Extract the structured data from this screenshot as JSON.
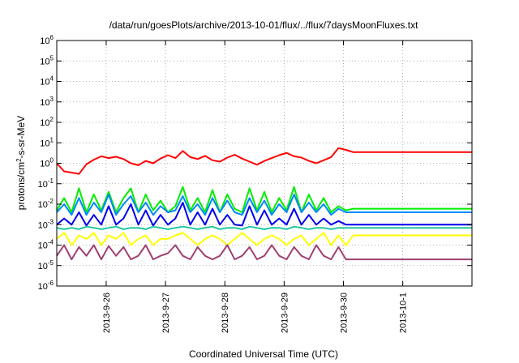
{
  "chart_data": {
    "type": "line",
    "title": "/data/run/goesPlots/archive/2013-10-01/flux/../flux/7daysMoonFluxes.txt",
    "xlabel": "Coordinated Universal Time (UTC)",
    "ylabel_parts": [
      "protons/cm",
      "2",
      "-s-sr-MeV"
    ],
    "y_scale": "log",
    "ylim_exponents": [
      -6,
      6
    ],
    "y_tick_base": "10",
    "y_tick_exponents": [
      "-6",
      "-5",
      "-4",
      "-3",
      "-2",
      "-1",
      "0",
      "1",
      "2",
      "3",
      "4",
      "5",
      "6"
    ],
    "xlim": [
      "2013-09-25 04:00",
      "2013-10-02 04:00"
    ],
    "x_ticks": [
      "2013-9-26",
      "2013-9-27",
      "2013-9-28",
      "2013-9-29",
      "2013-9-30",
      "2013-10-1"
    ],
    "grid": true,
    "series": [
      {
        "color": "#ff0000",
        "flat_value": 3.5,
        "x": [
          "2013-09-25 04:00",
          "2013-09-25 07:00",
          "2013-09-25 10:00",
          "2013-09-25 13:00",
          "2013-09-25 16:00",
          "2013-09-25 19:00",
          "2013-09-25 22:00",
          "2013-09-26 01:00",
          "2013-09-26 04:00",
          "2013-09-26 07:00",
          "2013-09-26 10:00",
          "2013-09-26 13:00",
          "2013-09-26 16:00",
          "2013-09-26 19:00",
          "2013-09-26 22:00",
          "2013-09-27 01:00",
          "2013-09-27 04:00",
          "2013-09-27 07:00",
          "2013-09-27 10:00",
          "2013-09-27 13:00",
          "2013-09-27 16:00",
          "2013-09-27 19:00",
          "2013-09-27 22:00",
          "2013-09-28 01:00",
          "2013-09-28 04:00",
          "2013-09-28 07:00",
          "2013-09-28 10:00",
          "2013-09-28 13:00",
          "2013-09-28 16:00",
          "2013-09-28 19:00",
          "2013-09-28 22:00",
          "2013-09-29 01:00",
          "2013-09-29 04:00",
          "2013-09-29 07:00",
          "2013-09-29 10:00",
          "2013-09-29 13:00",
          "2013-09-29 16:00",
          "2013-09-29 19:00",
          "2013-09-29 22:00",
          "2013-09-30 01:00",
          "2013-09-30 04:00",
          "2013-10-02 04:00"
        ],
        "values": [
          1.0,
          0.4,
          0.35,
          0.3,
          0.9,
          1.5,
          2.2,
          1.8,
          2.1,
          1.6,
          1.0,
          0.8,
          1.3,
          1.0,
          1.7,
          2.5,
          1.8,
          4.0,
          2.0,
          1.6,
          2.3,
          1.4,
          1.2,
          1.9,
          2.6,
          1.7,
          1.2,
          0.85,
          1.3,
          1.8,
          2.5,
          3.2,
          2.2,
          1.9,
          1.3,
          1.0,
          1.4,
          2.0,
          5.5,
          4.5,
          3.5,
          3.5
        ]
      },
      {
        "color": "#00ee00",
        "flat_value": 0.006,
        "x": [
          "2013-09-25 04:00",
          "2013-09-25 07:00",
          "2013-09-25 10:00",
          "2013-09-25 13:00",
          "2013-09-25 16:00",
          "2013-09-25 19:00",
          "2013-09-25 22:00",
          "2013-09-26 01:00",
          "2013-09-26 04:00",
          "2013-09-26 07:00",
          "2013-09-26 10:00",
          "2013-09-26 13:00",
          "2013-09-26 16:00",
          "2013-09-26 19:00",
          "2013-09-26 22:00",
          "2013-09-27 01:00",
          "2013-09-27 04:00",
          "2013-09-27 07:00",
          "2013-09-27 10:00",
          "2013-09-27 13:00",
          "2013-09-27 16:00",
          "2013-09-27 19:00",
          "2013-09-27 22:00",
          "2013-09-28 01:00",
          "2013-09-28 04:00",
          "2013-09-28 07:00",
          "2013-09-28 10:00",
          "2013-09-28 13:00",
          "2013-09-28 16:00",
          "2013-09-28 19:00",
          "2013-09-28 22:00",
          "2013-09-29 01:00",
          "2013-09-29 04:00",
          "2013-09-29 07:00",
          "2013-09-29 10:00",
          "2013-09-29 13:00",
          "2013-09-29 16:00",
          "2013-09-29 19:00",
          "2013-09-29 22:00",
          "2013-09-30 01:00",
          "2013-09-30 04:00",
          "2013-10-02 04:00"
        ],
        "values": [
          0.005,
          0.02,
          0.004,
          0.06,
          0.004,
          0.03,
          0.005,
          0.04,
          0.004,
          0.02,
          0.06,
          0.004,
          0.03,
          0.005,
          0.015,
          0.004,
          0.008,
          0.07,
          0.005,
          0.02,
          0.004,
          0.05,
          0.004,
          0.03,
          0.006,
          0.004,
          0.06,
          0.005,
          0.04,
          0.004,
          0.02,
          0.005,
          0.07,
          0.004,
          0.03,
          0.005,
          0.02,
          0.004,
          0.008,
          0.005,
          0.006,
          0.006
        ]
      },
      {
        "color": "#0088ff",
        "flat_value": 0.004,
        "x": [
          "2013-09-25 04:00",
          "2013-09-25 07:00",
          "2013-09-25 10:00",
          "2013-09-25 13:00",
          "2013-09-25 16:00",
          "2013-09-25 19:00",
          "2013-09-25 22:00",
          "2013-09-26 01:00",
          "2013-09-26 04:00",
          "2013-09-26 07:00",
          "2013-09-26 10:00",
          "2013-09-26 13:00",
          "2013-09-26 16:00",
          "2013-09-26 19:00",
          "2013-09-26 22:00",
          "2013-09-27 01:00",
          "2013-09-27 04:00",
          "2013-09-27 07:00",
          "2013-09-27 10:00",
          "2013-09-27 13:00",
          "2013-09-27 16:00",
          "2013-09-27 19:00",
          "2013-09-27 22:00",
          "2013-09-28 01:00",
          "2013-09-28 04:00",
          "2013-09-28 07:00",
          "2013-09-28 10:00",
          "2013-09-28 13:00",
          "2013-09-28 16:00",
          "2013-09-28 19:00",
          "2013-09-28 22:00",
          "2013-09-29 01:00",
          "2013-09-29 04:00",
          "2013-09-29 07:00",
          "2013-09-29 10:00",
          "2013-09-29 13:00",
          "2013-09-29 16:00",
          "2013-09-29 19:00",
          "2013-09-29 22:00",
          "2013-09-30 01:00",
          "2013-09-30 04:00",
          "2013-10-02 04:00"
        ],
        "values": [
          0.004,
          0.01,
          0.003,
          0.02,
          0.003,
          0.012,
          0.004,
          0.03,
          0.003,
          0.01,
          0.025,
          0.004,
          0.012,
          0.003,
          0.008,
          0.004,
          0.005,
          0.025,
          0.004,
          0.01,
          0.003,
          0.02,
          0.004,
          0.015,
          0.004,
          0.003,
          0.02,
          0.004,
          0.015,
          0.003,
          0.01,
          0.004,
          0.03,
          0.004,
          0.012,
          0.004,
          0.01,
          0.003,
          0.006,
          0.004,
          0.004,
          0.004
        ]
      },
      {
        "color": "#0000ee",
        "flat_value": 0.001,
        "x": [
          "2013-09-25 04:00",
          "2013-09-25 07:00",
          "2013-09-25 10:00",
          "2013-09-25 13:00",
          "2013-09-25 16:00",
          "2013-09-25 19:00",
          "2013-09-25 22:00",
          "2013-09-26 01:00",
          "2013-09-26 04:00",
          "2013-09-26 07:00",
          "2013-09-26 10:00",
          "2013-09-26 13:00",
          "2013-09-26 16:00",
          "2013-09-26 19:00",
          "2013-09-26 22:00",
          "2013-09-27 01:00",
          "2013-09-27 04:00",
          "2013-09-27 07:00",
          "2013-09-27 10:00",
          "2013-09-27 13:00",
          "2013-09-27 16:00",
          "2013-09-27 19:00",
          "2013-09-27 22:00",
          "2013-09-28 01:00",
          "2013-09-28 04:00",
          "2013-09-28 07:00",
          "2013-09-28 10:00",
          "2013-09-28 13:00",
          "2013-09-28 16:00",
          "2013-09-28 19:00",
          "2013-09-28 22:00",
          "2013-09-29 01:00",
          "2013-09-29 04:00",
          "2013-09-29 07:00",
          "2013-09-29 10:00",
          "2013-09-29 13:00",
          "2013-09-29 16:00",
          "2013-09-29 19:00",
          "2013-09-29 22:00",
          "2013-09-30 01:00",
          "2013-09-30 04:00",
          "2013-10-02 04:00"
        ],
        "values": [
          0.001,
          0.002,
          0.001,
          0.004,
          0.0009,
          0.003,
          0.001,
          0.008,
          0.001,
          0.002,
          0.01,
          0.001,
          0.005,
          0.0009,
          0.003,
          0.001,
          0.002,
          0.012,
          0.001,
          0.004,
          0.001,
          0.006,
          0.001,
          0.003,
          0.001,
          0.0009,
          0.008,
          0.001,
          0.005,
          0.001,
          0.002,
          0.001,
          0.006,
          0.001,
          0.003,
          0.001,
          0.002,
          0.001,
          0.0015,
          0.001,
          0.001,
          0.001
        ]
      },
      {
        "color": "#20c8a0",
        "flat_value": 0.0007,
        "x": [
          "2013-09-25 04:00",
          "2013-09-25 07:00",
          "2013-09-25 10:00",
          "2013-09-25 13:00",
          "2013-09-25 16:00",
          "2013-09-25 19:00",
          "2013-09-25 22:00",
          "2013-09-26 01:00",
          "2013-09-26 04:00",
          "2013-09-26 07:00",
          "2013-09-26 10:00",
          "2013-09-26 13:00",
          "2013-09-26 16:00",
          "2013-09-26 19:00",
          "2013-09-26 22:00",
          "2013-09-27 01:00",
          "2013-09-27 04:00",
          "2013-09-27 07:00",
          "2013-09-27 10:00",
          "2013-09-27 13:00",
          "2013-09-27 16:00",
          "2013-09-27 19:00",
          "2013-09-27 22:00",
          "2013-09-28 01:00",
          "2013-09-28 04:00",
          "2013-09-28 07:00",
          "2013-09-28 10:00",
          "2013-09-28 13:00",
          "2013-09-28 16:00",
          "2013-09-28 19:00",
          "2013-09-28 22:00",
          "2013-09-29 01:00",
          "2013-09-29 04:00",
          "2013-09-29 07:00",
          "2013-09-29 10:00",
          "2013-09-29 13:00",
          "2013-09-29 16:00",
          "2013-09-29 19:00",
          "2013-09-29 22:00",
          "2013-09-30 01:00",
          "2013-09-30 04:00",
          "2013-10-02 04:00"
        ],
        "values": [
          0.0007,
          0.0006,
          0.0007,
          0.0006,
          0.0008,
          0.0007,
          0.0006,
          0.0007,
          0.0008,
          0.0006,
          0.0007,
          0.0007,
          0.0006,
          0.0008,
          0.0007,
          0.0006,
          0.0007,
          0.0008,
          0.0007,
          0.0006,
          0.0007,
          0.0008,
          0.0006,
          0.0007,
          0.0007,
          0.0006,
          0.0008,
          0.0007,
          0.0006,
          0.0007,
          0.0007,
          0.0006,
          0.0008,
          0.0007,
          0.0006,
          0.0007,
          0.0007,
          0.0006,
          0.0007,
          0.0007,
          0.0007,
          0.0007
        ]
      },
      {
        "color": "#ffff00",
        "flat_value": 0.0003,
        "x": [
          "2013-09-25 04:00",
          "2013-09-25 07:00",
          "2013-09-25 10:00",
          "2013-09-25 13:00",
          "2013-09-25 16:00",
          "2013-09-25 19:00",
          "2013-09-25 22:00",
          "2013-09-26 01:00",
          "2013-09-26 04:00",
          "2013-09-26 07:00",
          "2013-09-26 10:00",
          "2013-09-26 13:00",
          "2013-09-26 16:00",
          "2013-09-26 19:00",
          "2013-09-26 22:00",
          "2013-09-27 01:00",
          "2013-09-27 04:00",
          "2013-09-27 07:00",
          "2013-09-27 10:00",
          "2013-09-27 13:00",
          "2013-09-27 16:00",
          "2013-09-27 19:00",
          "2013-09-27 22:00",
          "2013-09-28 01:00",
          "2013-09-28 04:00",
          "2013-09-28 07:00",
          "2013-09-28 10:00",
          "2013-09-28 13:00",
          "2013-09-28 16:00",
          "2013-09-28 19:00",
          "2013-09-28 22:00",
          "2013-09-29 01:00",
          "2013-09-29 04:00",
          "2013-09-29 07:00",
          "2013-09-29 10:00",
          "2013-09-29 13:00",
          "2013-09-29 16:00",
          "2013-09-29 19:00",
          "2013-09-29 22:00",
          "2013-09-30 01:00",
          "2013-09-30 04:00",
          "2013-10-02 04:00"
        ],
        "values": [
          0.0002,
          0.0004,
          0.0001,
          0.0003,
          0.0002,
          0.0004,
          0.0001,
          0.0003,
          0.0002,
          0.0004,
          0.0001,
          0.0002,
          0.0003,
          0.0001,
          0.0002,
          0.0002,
          0.0003,
          0.0004,
          0.0002,
          0.0001,
          0.0002,
          0.0003,
          0.0002,
          0.0001,
          0.0002,
          0.0004,
          0.0002,
          0.0001,
          0.0002,
          0.0003,
          0.0002,
          0.0001,
          0.0002,
          0.0003,
          0.0001,
          0.0002,
          0.0004,
          0.0001,
          0.0003,
          0.0001,
          0.0003,
          0.0003
        ]
      },
      {
        "color": "#a04070",
        "flat_value": 2e-05,
        "x": [
          "2013-09-25 04:00",
          "2013-09-25 07:00",
          "2013-09-25 10:00",
          "2013-09-25 13:00",
          "2013-09-25 16:00",
          "2013-09-25 19:00",
          "2013-09-25 22:00",
          "2013-09-26 01:00",
          "2013-09-26 04:00",
          "2013-09-26 07:00",
          "2013-09-26 10:00",
          "2013-09-26 13:00",
          "2013-09-26 16:00",
          "2013-09-26 19:00",
          "2013-09-26 22:00",
          "2013-09-27 01:00",
          "2013-09-27 04:00",
          "2013-09-27 07:00",
          "2013-09-27 10:00",
          "2013-09-27 13:00",
          "2013-09-27 16:00",
          "2013-09-27 19:00",
          "2013-09-27 22:00",
          "2013-09-28 01:00",
          "2013-09-28 04:00",
          "2013-09-28 07:00",
          "2013-09-28 10:00",
          "2013-09-28 13:00",
          "2013-09-28 16:00",
          "2013-09-28 19:00",
          "2013-09-28 22:00",
          "2013-09-29 01:00",
          "2013-09-29 04:00",
          "2013-09-29 07:00",
          "2013-09-29 10:00",
          "2013-09-29 13:00",
          "2013-09-29 16:00",
          "2013-09-29 19:00",
          "2013-09-29 22:00",
          "2013-09-30 01:00",
          "2013-09-30 04:00",
          "2013-10-02 04:00"
        ],
        "values": [
          3e-05,
          0.0001,
          2e-05,
          8e-05,
          3e-05,
          0.0001,
          2e-05,
          9e-05,
          3e-05,
          8e-05,
          2e-05,
          3e-05,
          0.0001,
          2e-05,
          3e-05,
          4e-05,
          0.0001,
          3e-05,
          2e-05,
          8e-05,
          3e-05,
          2e-05,
          3e-05,
          0.0001,
          2e-05,
          3e-05,
          8e-05,
          2e-05,
          3e-05,
          0.0001,
          3e-05,
          2e-05,
          8e-05,
          3e-05,
          2e-05,
          0.0001,
          3e-05,
          2e-05,
          8e-05,
          2e-05,
          2e-05,
          2e-05
        ]
      }
    ]
  }
}
